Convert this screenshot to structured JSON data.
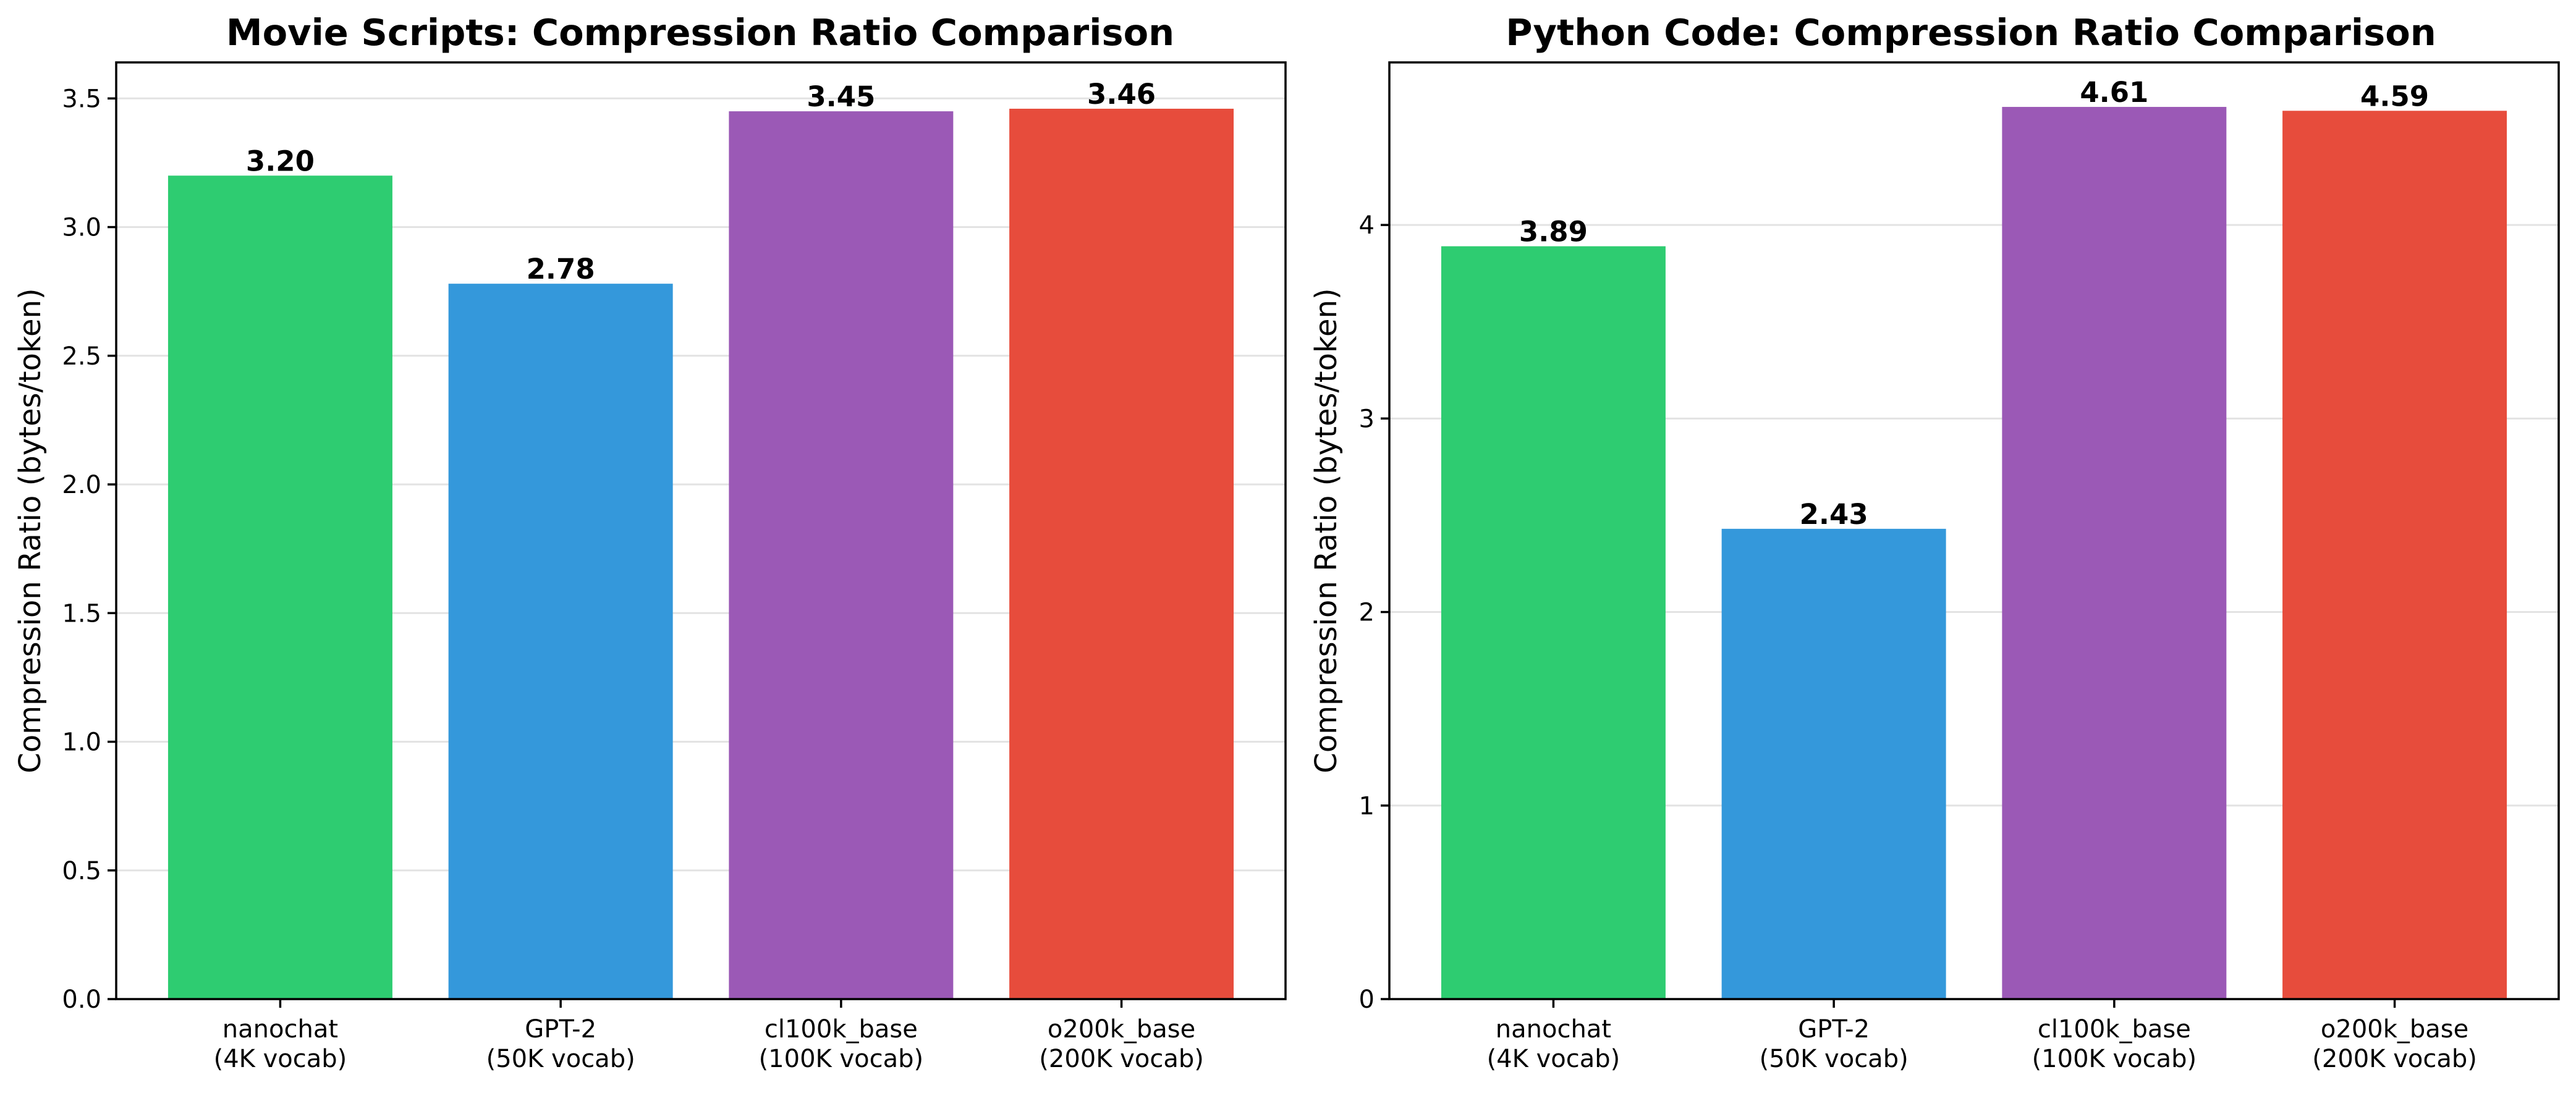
{
  "chart_data": [
    {
      "type": "bar",
      "title": "Movie Scripts: Compression Ratio Comparison",
      "xlabel": "",
      "ylabel": "Compression Ratio (bytes/token)",
      "ylim": [
        0,
        3.64
      ],
      "yticks": [
        "0.0",
        "0.5",
        "1.0",
        "1.5",
        "2.0",
        "2.5",
        "3.0",
        "3.5"
      ],
      "ytick_values": [
        0,
        0.5,
        1.0,
        1.5,
        2.0,
        2.5,
        3.0,
        3.5
      ],
      "grid": "y",
      "categories": [
        [
          "nanochat",
          "(4K vocab)"
        ],
        [
          "GPT-2",
          "(50K vocab)"
        ],
        [
          "cl100k_base",
          "(100K vocab)"
        ],
        [
          "o200k_base",
          "(200K vocab)"
        ]
      ],
      "values": [
        3.2,
        2.78,
        3.45,
        3.46
      ],
      "value_labels": [
        "3.20",
        "2.78",
        "3.45",
        "3.46"
      ],
      "colors": [
        "#2ecc71",
        "#3498db",
        "#9b59b6",
        "#e74c3c"
      ]
    },
    {
      "type": "bar",
      "title": "Python Code: Compression Ratio Comparison",
      "xlabel": "",
      "ylabel": "Compression Ratio (bytes/token)",
      "ylim": [
        0,
        4.84
      ],
      "yticks": [
        "0",
        "1",
        "2",
        "3",
        "4"
      ],
      "ytick_values": [
        0,
        1,
        2,
        3,
        4
      ],
      "grid": "y",
      "categories": [
        [
          "nanochat",
          "(4K vocab)"
        ],
        [
          "GPT-2",
          "(50K vocab)"
        ],
        [
          "cl100k_base",
          "(100K vocab)"
        ],
        [
          "o200k_base",
          "(200K vocab)"
        ]
      ],
      "values": [
        3.89,
        2.43,
        4.61,
        4.59
      ],
      "value_labels": [
        "3.89",
        "2.43",
        "4.61",
        "4.59"
      ],
      "colors": [
        "#2ecc71",
        "#3498db",
        "#9b59b6",
        "#e74c3c"
      ]
    }
  ]
}
